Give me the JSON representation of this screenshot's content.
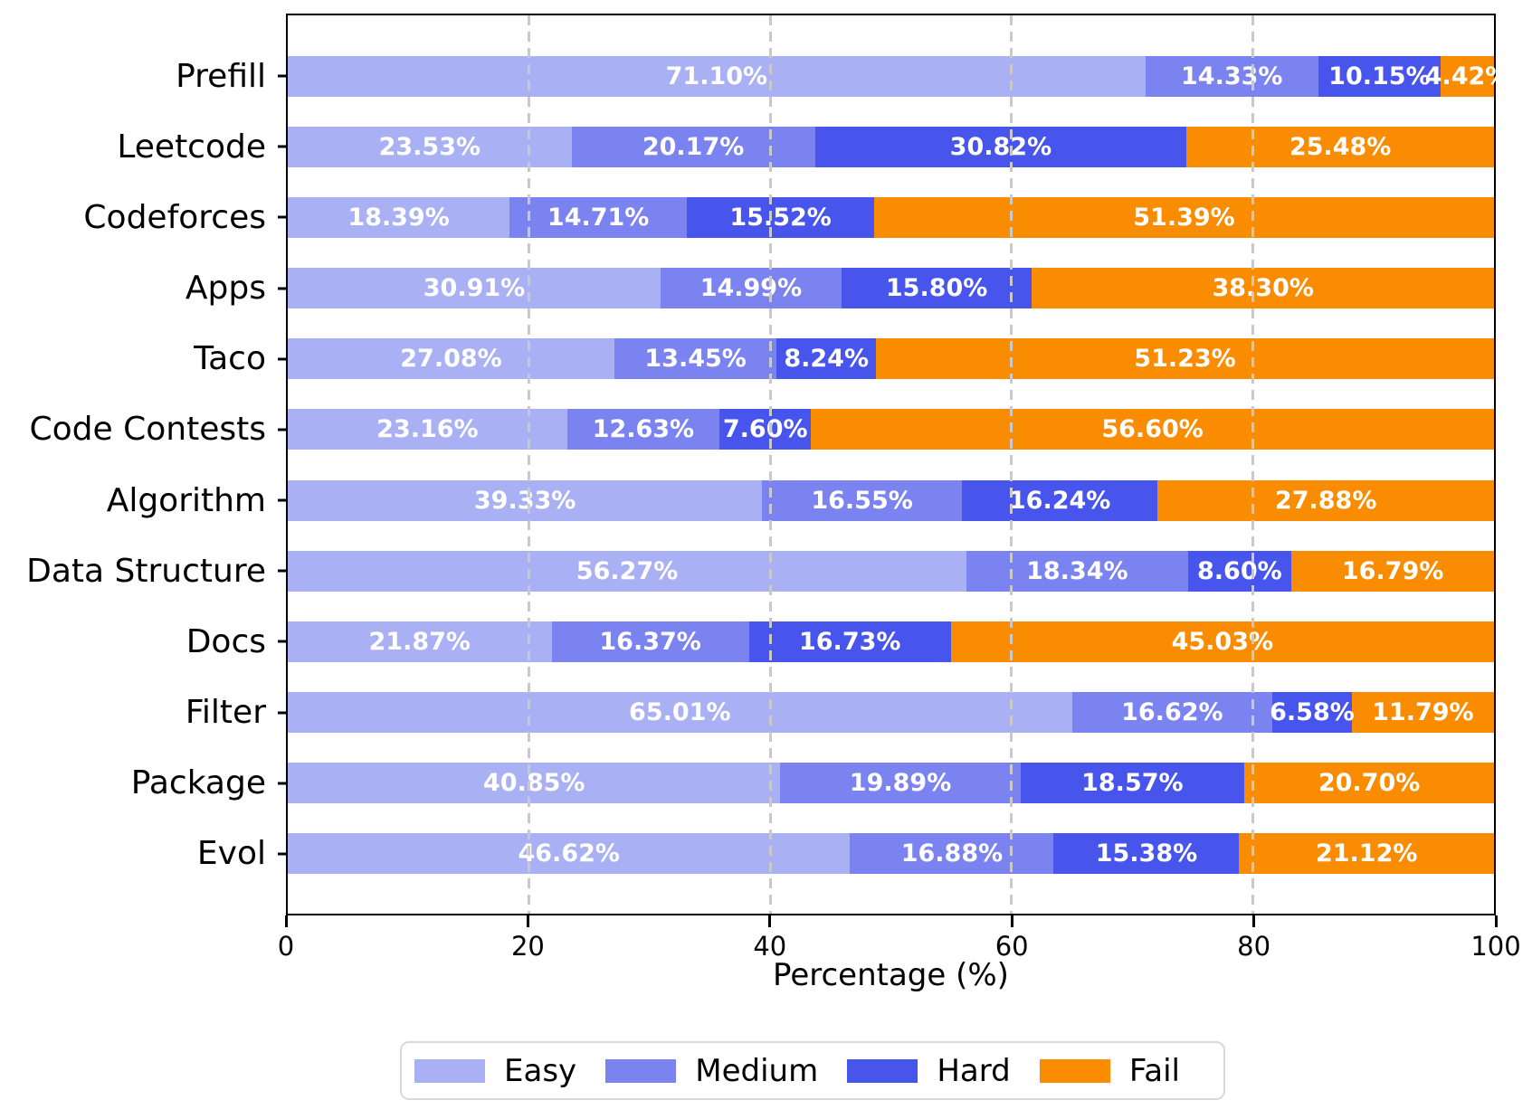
{
  "chart_data": {
    "type": "bar",
    "orientation": "horizontal",
    "stacked": true,
    "title": "",
    "xlabel": "Percentage (%)",
    "xlim": [
      0,
      100
    ],
    "x_ticks": [
      "0",
      "20",
      "40",
      "60",
      "80",
      "100"
    ],
    "x_tick_values": [
      0,
      20,
      40,
      60,
      80,
      100
    ],
    "gridlines_at": [
      20,
      40,
      60,
      80
    ],
    "grid": "dashed vertical, drawn over bars",
    "legend_position": "bottom center, horizontal",
    "categories": [
      "Prefill",
      "Leetcode",
      "Codeforces",
      "Apps",
      "Taco",
      "Code Contests",
      "Algorithm",
      "Data Structure",
      "Docs",
      "Filter",
      "Package",
      "Evol"
    ],
    "series": [
      {
        "name": "Easy",
        "color": "#A9B1F4",
        "values": [
          71.1,
          23.53,
          18.39,
          30.91,
          27.08,
          23.16,
          39.33,
          56.27,
          21.87,
          65.01,
          40.85,
          46.62
        ],
        "labels": [
          "71.10%",
          "23.53%",
          "18.39%",
          "30.91%",
          "27.08%",
          "23.16%",
          "39.33%",
          "56.27%",
          "21.87%",
          "65.01%",
          "40.85%",
          "46.62%"
        ]
      },
      {
        "name": "Medium",
        "color": "#7B83F0",
        "values": [
          14.33,
          20.17,
          14.71,
          14.99,
          13.45,
          12.63,
          16.55,
          18.34,
          16.37,
          16.62,
          19.89,
          16.88
        ],
        "labels": [
          "14.33%",
          "20.17%",
          "14.71%",
          "14.99%",
          "13.45%",
          "12.63%",
          "16.55%",
          "18.34%",
          "16.37%",
          "16.62%",
          "19.89%",
          "16.88%"
        ]
      },
      {
        "name": "Hard",
        "color": "#4755EC",
        "values": [
          10.15,
          30.82,
          15.52,
          15.8,
          8.24,
          7.6,
          16.24,
          8.6,
          16.73,
          6.58,
          18.57,
          15.38
        ],
        "labels": [
          "10.15%",
          "30.82%",
          "15.52%",
          "15.80%",
          "8.24%",
          "7.60%",
          "16.24%",
          "8.60%",
          "16.73%",
          "6.58%",
          "18.57%",
          "15.38%"
        ]
      },
      {
        "name": "Fail",
        "color": "#F98C00",
        "values": [
          4.42,
          25.48,
          51.39,
          38.3,
          51.23,
          56.6,
          27.88,
          16.79,
          45.03,
          11.79,
          20.7,
          21.12
        ],
        "labels": [
          "4.42%",
          "25.48%",
          "51.39%",
          "38.30%",
          "51.23%",
          "56.60%",
          "27.88%",
          "16.79%",
          "45.03%",
          "11.79%",
          "20.70%",
          "21.12%"
        ]
      }
    ],
    "bar_label_color": "#ffffff",
    "axis_color": "#000000",
    "gridline_color": "#c9c9c9"
  },
  "legend": {
    "items": [
      {
        "label": "Easy",
        "color": "#A9B1F4"
      },
      {
        "label": "Medium",
        "color": "#7B83F0"
      },
      {
        "label": "Hard",
        "color": "#4755EC"
      },
      {
        "label": "Fail",
        "color": "#F98C00"
      }
    ]
  }
}
